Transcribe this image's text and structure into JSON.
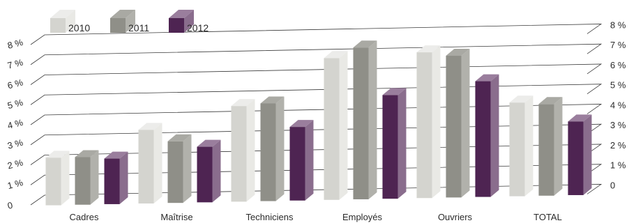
{
  "chart_data": {
    "type": "bar",
    "style": "3d-clustered-column",
    "categories": [
      "Cadres",
      "Maîtrise",
      "Techniciens",
      "Employés",
      "Ouvriers",
      "TOTAL"
    ],
    "series": [
      {
        "name": "2010",
        "values": [
          2.2,
          3.5,
          4.6,
          6.9,
          7.1,
          4.5
        ],
        "color": "#d4d4cf",
        "side_color": "#e9e9e5",
        "top_color": "#ececea"
      },
      {
        "name": "2011",
        "values": [
          2.2,
          2.9,
          4.7,
          7.4,
          6.9,
          4.4
        ],
        "color": "#8f8f88",
        "side_color": "#b1b1ab",
        "top_color": "#a9a9a3"
      },
      {
        "name": "2012",
        "values": [
          2.1,
          2.6,
          3.5,
          5.0,
          5.6,
          3.5
        ],
        "color": "#4e2452",
        "side_color": "#8a6d8d",
        "top_color": "#9a7e9d"
      }
    ],
    "ylim": [
      0,
      8
    ],
    "y_ticks_left": [
      "0",
      "1 %",
      "2 %",
      "3 %",
      "4 %",
      "5 %",
      "6 %",
      "7 %",
      "8 %"
    ],
    "y_ticks_right": [
      "0",
      "1 %",
      "2 %",
      "3 %",
      "4 %",
      "5 %",
      "6 %",
      "7 %",
      "8 %"
    ],
    "legend_position": "top-left",
    "grid": true,
    "title": "",
    "xlabel": "",
    "ylabel": ""
  }
}
